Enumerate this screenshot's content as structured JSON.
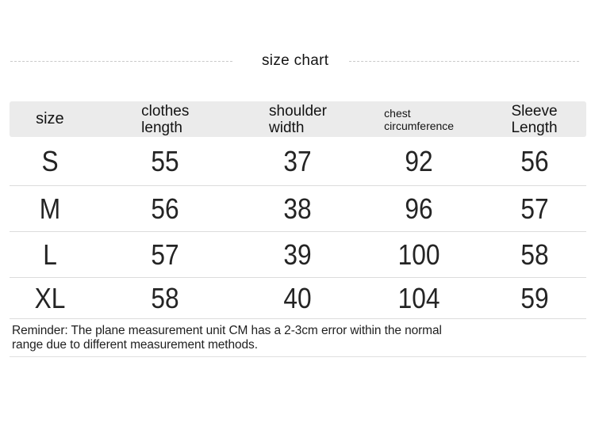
{
  "page": {
    "title": "size chart"
  },
  "chart_data": {
    "type": "table",
    "title": "size chart",
    "unit": "CM",
    "columns": [
      "size",
      "clothes length",
      "shoulder width",
      "chest circumference",
      "Sleeve Length"
    ],
    "rows": [
      {
        "size": "S",
        "clothes_length": "55",
        "shoulder_width": "37",
        "chest_circumference": "92",
        "sleeve_length": "56"
      },
      {
        "size": "M",
        "clothes_length": "56",
        "shoulder_width": "38",
        "chest_circumference": "96",
        "sleeve_length": "57"
      },
      {
        "size": "L",
        "clothes_length": "57",
        "shoulder_width": "39",
        "chest_circumference": "100",
        "sleeve_length": "58"
      },
      {
        "size": "XL",
        "clothes_length": "58",
        "shoulder_width": "40",
        "chest_circumference": "104",
        "sleeve_length": "59"
      }
    ]
  },
  "reminder": {
    "full_text": "Reminder: The plane measurement unit CM has a 2-3cm error within the normal range due to different measurement methods.",
    "lines": [
      "Reminder: The plane measurement unit CM has a 2-3cm error within the normal",
      "range due to different measurement methods."
    ]
  },
  "colors": {
    "header_bg": "#ebebeb",
    "row_divider": "#dcdcdc",
    "dashed_rule": "#c9c9c9",
    "text": "#1d1d1d",
    "background": "#ffffff"
  }
}
